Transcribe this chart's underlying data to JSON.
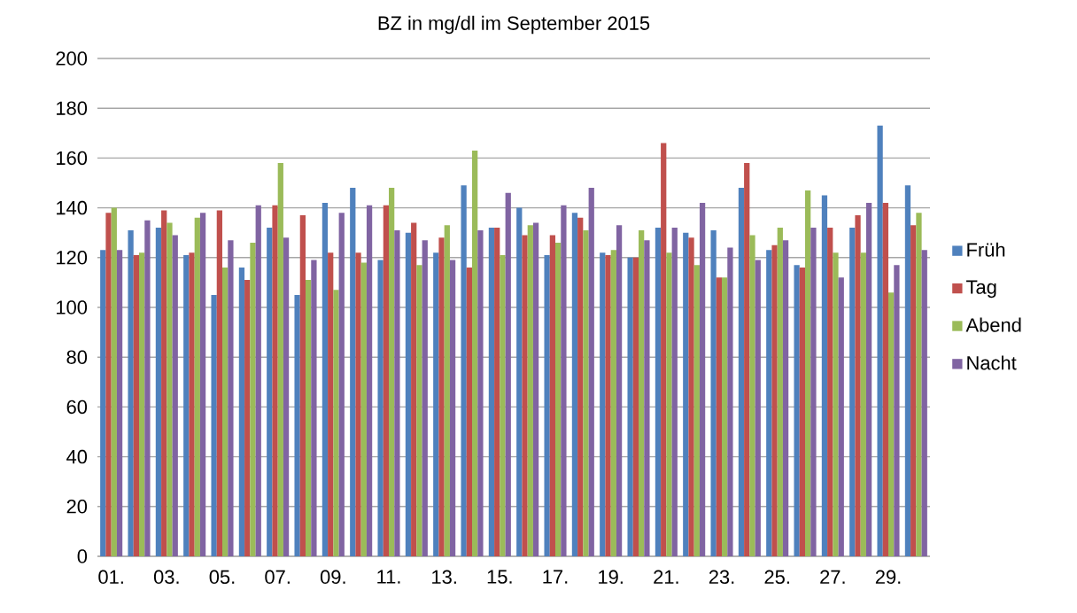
{
  "chart_data": {
    "type": "bar",
    "title": "BZ in mg/dl im  September 2015",
    "categories": [
      "01.",
      null,
      "03.",
      null,
      "05.",
      null,
      "07.",
      null,
      "09.",
      null,
      "11.",
      null,
      "13.",
      null,
      "15.",
      null,
      "17.",
      null,
      "19.",
      null,
      "21.",
      null,
      "23.",
      null,
      "25.",
      null,
      "27.",
      null,
      "29.",
      null
    ],
    "series": [
      {
        "name": "Früh",
        "color": "#4f81bd",
        "values": [
          123,
          131,
          132,
          121,
          105,
          116,
          132,
          105,
          142,
          148,
          119,
          130,
          122,
          149,
          132,
          140,
          121,
          138,
          122,
          120,
          132,
          130,
          131,
          148,
          123,
          117,
          145,
          132,
          173,
          149
        ]
      },
      {
        "name": "Tag",
        "color": "#c0504d",
        "values": [
          138,
          121,
          139,
          122,
          139,
          111,
          141,
          137,
          122,
          122,
          141,
          134,
          128,
          116,
          132,
          129,
          129,
          136,
          121,
          120,
          166,
          128,
          112,
          158,
          125,
          116,
          132,
          137,
          142,
          133
        ]
      },
      {
        "name": "Abend",
        "color": "#9bbb59",
        "values": [
          140,
          122,
          134,
          136,
          116,
          126,
          158,
          111,
          107,
          118,
          148,
          117,
          133,
          163,
          121,
          133,
          126,
          131,
          123,
          131,
          122,
          117,
          112,
          129,
          132,
          147,
          122,
          122,
          106,
          138
        ]
      },
      {
        "name": "Nacht",
        "color": "#8064a2",
        "values": [
          123,
          135,
          129,
          138,
          127,
          141,
          128,
          119,
          138,
          141,
          131,
          127,
          119,
          131,
          146,
          134,
          141,
          148,
          133,
          127,
          132,
          142,
          124,
          119,
          127,
          132,
          112,
          142,
          117,
          123
        ]
      }
    ],
    "ylim": [
      0,
      200
    ],
    "yticks": [
      0,
      20,
      40,
      60,
      80,
      100,
      120,
      140,
      160,
      180,
      200
    ],
    "grid": "y",
    "legend": "right"
  }
}
